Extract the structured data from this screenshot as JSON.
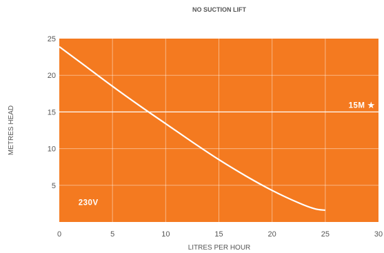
{
  "chart_data": {
    "type": "line",
    "title": "NO SUCTION LIFT",
    "xlabel": "LITRES PER HOUR",
    "ylabel": "METRES HEAD",
    "xlim": [
      0,
      30
    ],
    "ylim": [
      0,
      25
    ],
    "x_ticks": [
      0,
      5,
      10,
      15,
      20,
      25,
      30
    ],
    "y_ticks": [
      5,
      10,
      15,
      20,
      25
    ],
    "grid": true,
    "background_color": "#F47A20",
    "line_color": "#FFFFFF",
    "series": [
      {
        "x": [
          0,
          2.5,
          5,
          7.5,
          10,
          12.5,
          15,
          17.5,
          20,
          22.5,
          24,
          25
        ],
        "y": [
          23.9,
          21.2,
          18.5,
          15.9,
          13.4,
          10.9,
          8.5,
          6.3,
          4.3,
          2.6,
          1.8,
          1.6
        ]
      }
    ],
    "reference_line": {
      "y": 15,
      "label": "15M ★"
    },
    "annotation": {
      "text": "230V"
    }
  }
}
